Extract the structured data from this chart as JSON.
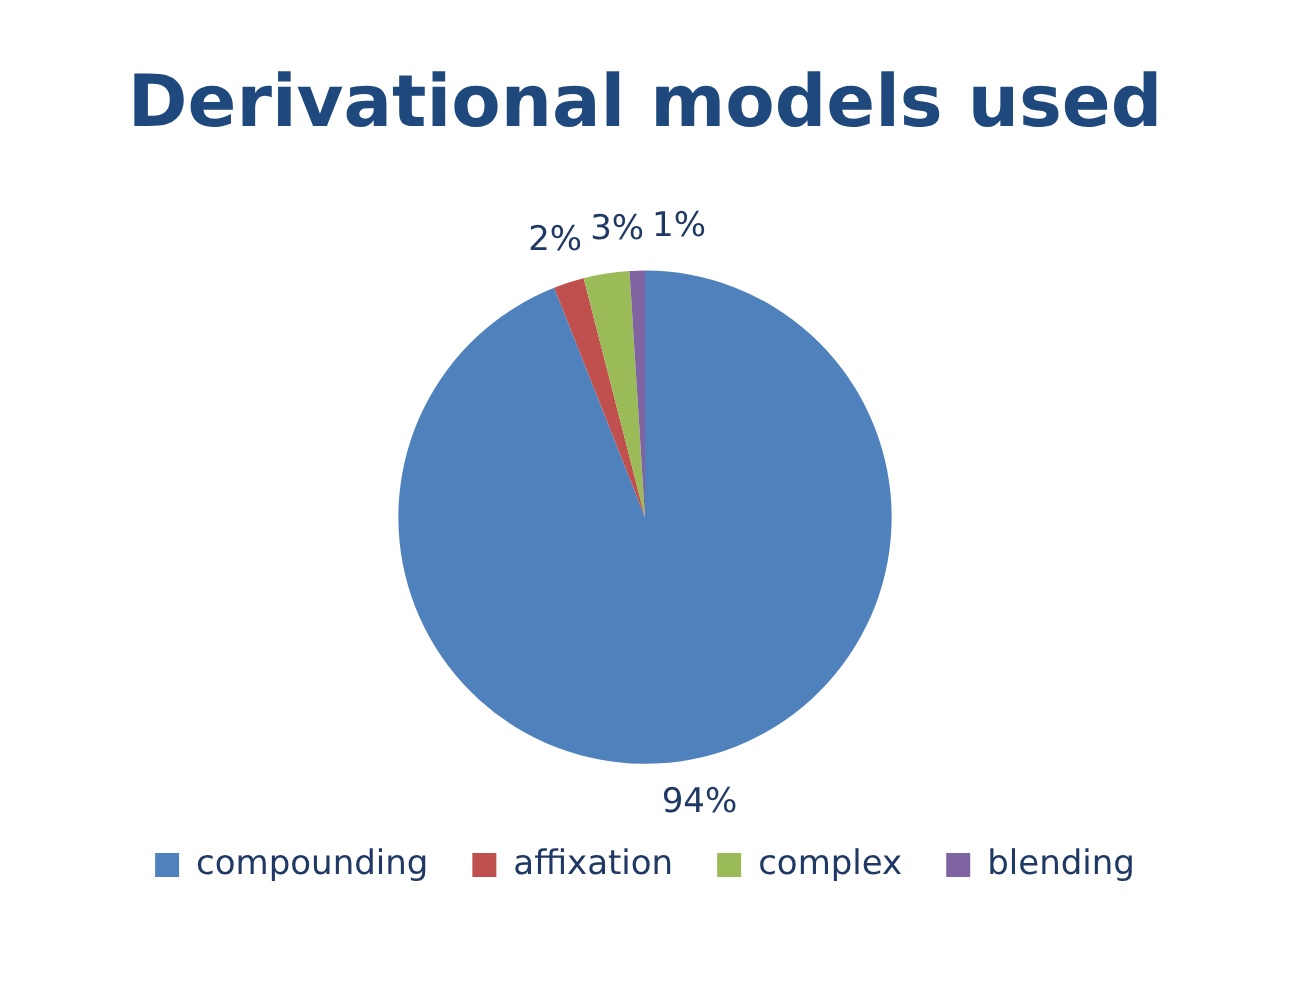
{
  "chart_data": {
    "type": "pie",
    "title": "Derivational models used",
    "categories": [
      "compounding",
      "affixation",
      "complex",
      "blending"
    ],
    "values": [
      94,
      2,
      3,
      1
    ],
    "colors": [
      "#4f81bd",
      "#c0504d",
      "#9bbb59",
      "#8064a2"
    ],
    "value_labels": [
      "94%",
      "2%",
      "3%",
      "1%"
    ],
    "legend": "bottom"
  }
}
